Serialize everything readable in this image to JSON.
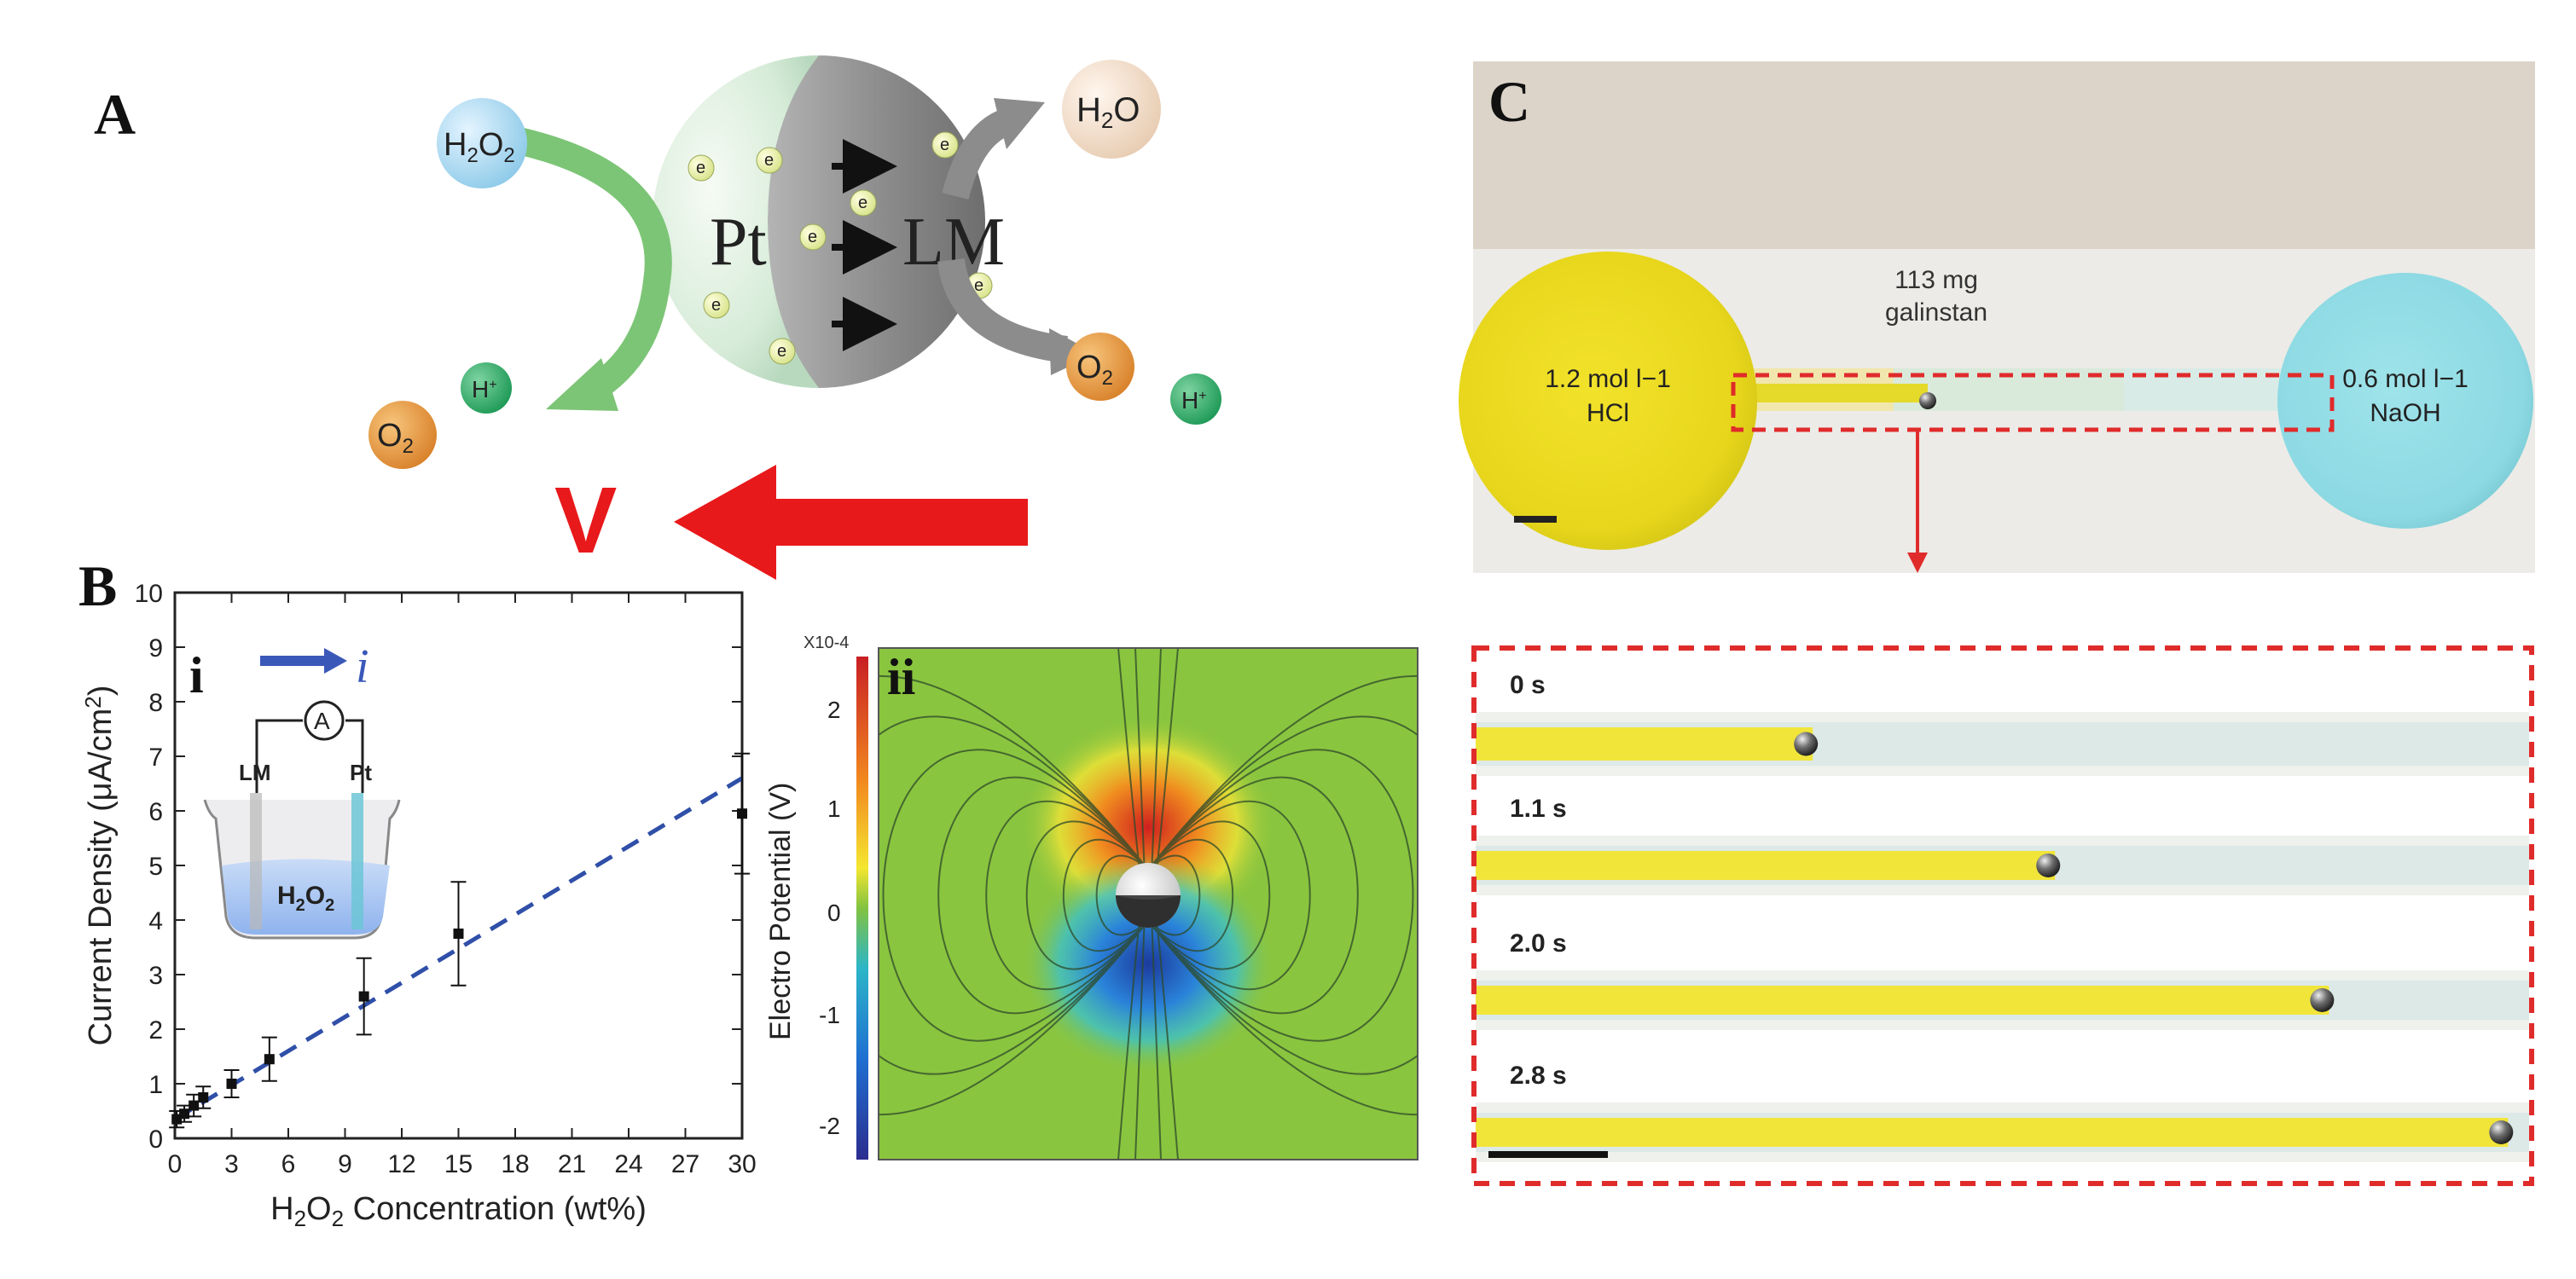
{
  "panels": {
    "a": {
      "letter": "A",
      "molecules": {
        "h2o2": "H2O2",
        "h2o": "H2O",
        "o2": "O2",
        "hplus": "H+"
      },
      "pt_label": "Pt",
      "lm_label": "LM",
      "electron": "e",
      "velocity": "V",
      "colors": {
        "red": "#e8191b",
        "green": "#7cc576",
        "gray": "#8c8c8c"
      }
    },
    "b": {
      "letter": "B",
      "sub_i": "i",
      "sub_ii": "ii",
      "inset": {
        "lm": "LM",
        "pt": "Pt",
        "meter": "A",
        "current": "i",
        "solution": "H2O2"
      },
      "potential_unit": "X10-4",
      "potential_label": "Electro Potential (V)",
      "potential_ticks": [
        "2",
        "1",
        "0",
        "-1",
        "-2"
      ]
    },
    "c": {
      "letter": "C",
      "reservoir_left": {
        "line1": "1.2 mol l−1",
        "line2": "HCl"
      },
      "reservoir_right": {
        "line1": "0.6 mol l−1",
        "line2": "NaOH"
      },
      "droplet_label_1": "113 mg",
      "droplet_label_2": "galinstan",
      "frames": [
        {
          "time": "0 s",
          "position": 0.32
        },
        {
          "time": "1.1 s",
          "position": 0.55
        },
        {
          "time": "2.0 s",
          "position": 0.81
        },
        {
          "time": "2.8 s",
          "position": 0.98
        }
      ]
    }
  },
  "chart_data": {
    "type": "scatter",
    "xlabel": "H2O2 Concentration (wt%)",
    "ylabel": "Current Density (μA/cm2)",
    "xlim": [
      0,
      30
    ],
    "ylim": [
      0,
      10
    ],
    "xticks": [
      "0",
      "3",
      "6",
      "9",
      "12",
      "15",
      "18",
      "21",
      "24",
      "27",
      "30"
    ],
    "yticks": [
      "0",
      "1",
      "2",
      "3",
      "4",
      "5",
      "6",
      "7",
      "8",
      "9",
      "10"
    ],
    "x": [
      0.1,
      0.5,
      1,
      1.5,
      3,
      5,
      10,
      15,
      30
    ],
    "y": [
      0.35,
      0.45,
      0.6,
      0.75,
      1.0,
      1.45,
      2.6,
      3.75,
      5.95
    ],
    "err": [
      0.15,
      0.15,
      0.2,
      0.2,
      0.25,
      0.4,
      0.7,
      0.95,
      1.1
    ],
    "fit": {
      "x": [
        0,
        30
      ],
      "y": [
        0.35,
        6.6
      ],
      "style": "dashed"
    },
    "grid": false
  }
}
